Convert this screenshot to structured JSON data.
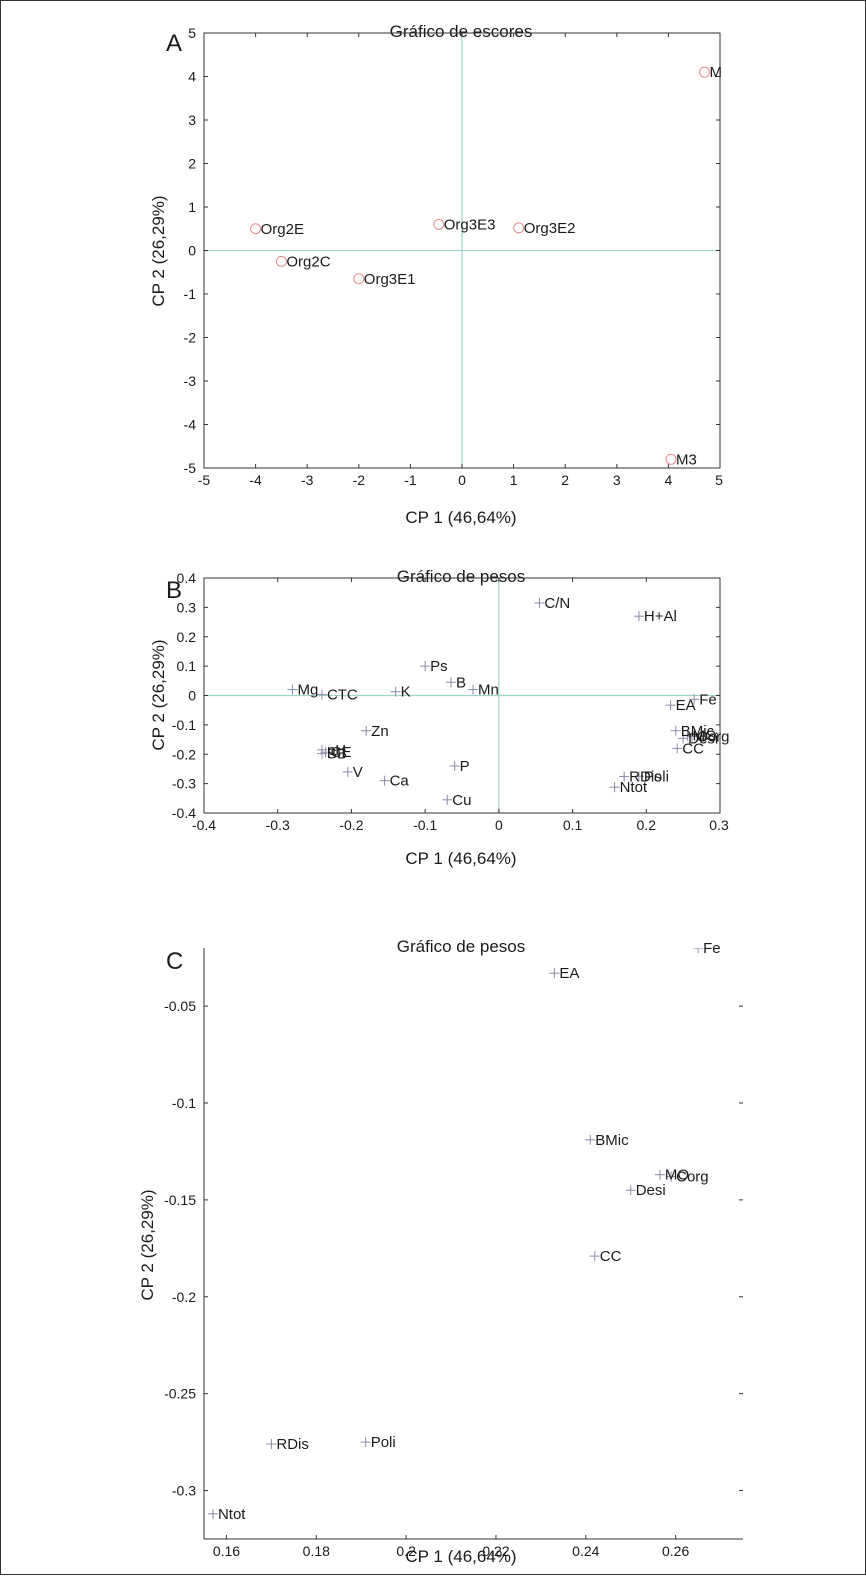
{
  "colors": {
    "frame": "#333333",
    "refline": "#9fd6cc",
    "score_marker": "#e88a8a",
    "loading_marker": "#8a8aa8",
    "text": "#1a1a1a"
  },
  "chart_data": [
    {
      "letter": "A",
      "type": "scatter",
      "title": "Gráfico de escores",
      "xlabel": "CP 1 (46,64%)",
      "ylabel": "CP 2 (26,29%)",
      "xlim": [
        -5,
        5
      ],
      "ylim": [
        -5,
        5
      ],
      "xticks": [
        "-5",
        "-4",
        "-3",
        "-2",
        "-1",
        "0",
        "1",
        "2",
        "3",
        "4",
        "5"
      ],
      "yticks": [
        "-5",
        "-4",
        "-3",
        "-2",
        "-1",
        "0",
        "1",
        "2",
        "3",
        "4",
        "5"
      ],
      "reference_lines": true,
      "marker": "circle",
      "points": [
        {
          "label": "M",
          "x": 4.7,
          "y": 4.1
        },
        {
          "label": "Org2E",
          "x": -4.0,
          "y": 0.5
        },
        {
          "label": "Org2C",
          "x": -3.5,
          "y": -0.25
        },
        {
          "label": "Org3E1",
          "x": -2.0,
          "y": -0.65
        },
        {
          "label": "Org3E3",
          "x": -0.45,
          "y": 0.6
        },
        {
          "label": "Org3E2",
          "x": 1.1,
          "y": 0.52
        },
        {
          "label": "M3",
          "x": 4.05,
          "y": -4.8
        }
      ]
    },
    {
      "letter": "B",
      "type": "scatter",
      "title": "Gráfico de pesos",
      "xlabel": "CP 1 (46,64%)",
      "ylabel": "CP 2 (26,29%)",
      "xlim": [
        -0.4,
        0.3
      ],
      "ylim": [
        -0.4,
        0.4
      ],
      "xticks": [
        "-0.4",
        "-0.3",
        "-0.2",
        "-0.1",
        "0",
        "0.1",
        "0.2",
        "0.3"
      ],
      "yticks": [
        "-0.4",
        "-0.3",
        "-0.2",
        "-0.1",
        "0",
        "0.1",
        "0.2",
        "0.3",
        "0.4"
      ],
      "reference_lines": true,
      "marker": "plus",
      "points": [
        {
          "label": "C/N",
          "x": 0.055,
          "y": 0.315
        },
        {
          "label": "H+Al",
          "x": 0.19,
          "y": 0.27
        },
        {
          "label": "Ps",
          "x": -0.1,
          "y": 0.1
        },
        {
          "label": "B",
          "x": -0.065,
          "y": 0.045
        },
        {
          "label": "Mn",
          "x": -0.035,
          "y": 0.02
        },
        {
          "label": "Mg",
          "x": -0.28,
          "y": 0.02
        },
        {
          "label": "CTC",
          "x": -0.24,
          "y": 0.003
        },
        {
          "label": "K",
          "x": -0.14,
          "y": 0.013
        },
        {
          "label": "Fe",
          "x": 0.265,
          "y": -0.013
        },
        {
          "label": "EA",
          "x": 0.233,
          "y": -0.033
        },
        {
          "label": "Zn",
          "x": -0.18,
          "y": -0.12
        },
        {
          "label": "BMic",
          "x": 0.24,
          "y": -0.12
        },
        {
          "label": "MO",
          "x": 0.256,
          "y": -0.137
        },
        {
          "label": "Corg",
          "x": 0.262,
          "y": -0.14
        },
        {
          "label": "Desi",
          "x": 0.25,
          "y": -0.146
        },
        {
          "label": "CC",
          "x": 0.242,
          "y": -0.18
        },
        {
          "label": "pH",
          "x": -0.24,
          "y": -0.185
        },
        {
          "label": "SB",
          "x": -0.24,
          "y": -0.198
        },
        {
          "label": "CE",
          "x": -0.235,
          "y": -0.193
        },
        {
          "label": "P",
          "x": -0.06,
          "y": -0.24
        },
        {
          "label": "V",
          "x": -0.205,
          "y": -0.26
        },
        {
          "label": "Ca",
          "x": -0.155,
          "y": -0.29
        },
        {
          "label": "RDis",
          "x": 0.17,
          "y": -0.276
        },
        {
          "label": "Poli",
          "x": 0.19,
          "y": -0.275
        },
        {
          "label": "Ntot",
          "x": 0.157,
          "y": -0.312
        },
        {
          "label": "Cu",
          "x": -0.07,
          "y": -0.355
        }
      ]
    },
    {
      "letter": "C",
      "type": "scatter",
      "title": "Gráfico de pesos",
      "xlabel": "CP 1 (46,64%)",
      "ylabel": "CP 2 (26,29%)",
      "xlim": [
        0.155,
        0.275
      ],
      "ylim": [
        -0.325,
        -0.02
      ],
      "xticks": [
        "0.16",
        "0.18",
        "0.2",
        "0.22",
        "0.24",
        "0.26"
      ],
      "xtick_values": [
        0.16,
        0.18,
        0.2,
        0.22,
        0.24,
        0.26
      ],
      "yticks": [
        "-0.3",
        "-0.25",
        "-0.2",
        "-0.15",
        "-0.1",
        "-0.05"
      ],
      "ytick_values": [
        -0.3,
        -0.25,
        -0.2,
        -0.15,
        -0.1,
        -0.05
      ],
      "reference_lines": false,
      "marker": "plus",
      "points": [
        {
          "label": "Fe",
          "x": 0.265,
          "y": -0.02
        },
        {
          "label": "EA",
          "x": 0.233,
          "y": -0.033
        },
        {
          "label": "BMic",
          "x": 0.241,
          "y": -0.119
        },
        {
          "label": "MO",
          "x": 0.2565,
          "y": -0.137
        },
        {
          "label": "Corg",
          "x": 0.259,
          "y": -0.138
        },
        {
          "label": "Desi",
          "x": 0.25,
          "y": -0.145
        },
        {
          "label": "CC",
          "x": 0.242,
          "y": -0.179
        },
        {
          "label": "RDis",
          "x": 0.17,
          "y": -0.276
        },
        {
          "label": "Poli",
          "x": 0.191,
          "y": -0.275
        },
        {
          "label": "Ntot",
          "x": 0.157,
          "y": -0.312
        }
      ]
    }
  ]
}
